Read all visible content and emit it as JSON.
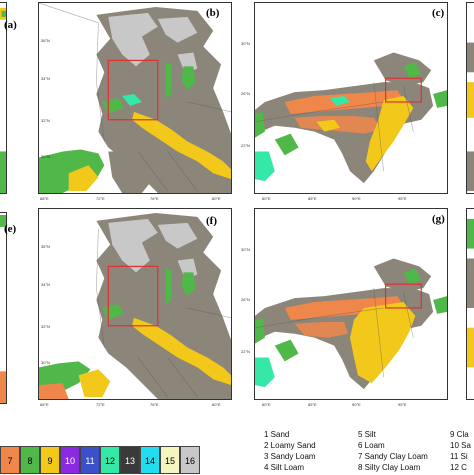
{
  "panels": [
    {
      "id": "a",
      "label": "(a)"
    },
    {
      "id": "b",
      "label": "(b)"
    },
    {
      "id": "c",
      "label": "(c)"
    },
    {
      "id": "e",
      "label": "(e)"
    },
    {
      "id": "f",
      "label": "(f)"
    },
    {
      "id": "g",
      "label": "(g)"
    }
  ],
  "kashmir_axes": {
    "x_ticks": [
      "68°E",
      "72°E",
      "76°E",
      "80°E"
    ],
    "y_ticks": [
      "36°N",
      "34°N",
      "32°N",
      "30°N",
      "28°N"
    ]
  },
  "northeast_axes": {
    "x_ticks": [
      "80°E",
      "85°E",
      "90°E",
      "95°E"
    ],
    "y_ticks": [
      "30°N",
      "26°N",
      "22°N",
      "18°N"
    ]
  },
  "colorbar": [
    {
      "n": "7",
      "color": "#f0874a"
    },
    {
      "n": "8",
      "color": "#4fb848"
    },
    {
      "n": "9",
      "color": "#f2c81a"
    },
    {
      "n": "10",
      "color": "#8a2be2"
    },
    {
      "n": "11",
      "color": "#3b50c9"
    },
    {
      "n": "12",
      "color": "#35e8a8"
    },
    {
      "n": "13",
      "color": "#3a3a3a"
    },
    {
      "n": "14",
      "color": "#22ddee"
    },
    {
      "n": "15",
      "color": "#f5f5bf"
    },
    {
      "n": "16",
      "color": "#c8c8c8"
    }
  ],
  "legend_items": [
    {
      "text": "1 Sand"
    },
    {
      "text": "2 Loamy Sand"
    },
    {
      "text": "3 Sandy Loam"
    },
    {
      "text": "4 Silt Loam"
    },
    {
      "text": "5 Silt"
    },
    {
      "text": "6 Loam"
    },
    {
      "text": "7 Sandy Clay Loam"
    },
    {
      "text": "8 Silty Clay Loam"
    },
    {
      "text": "9 Cla"
    },
    {
      "text": "10 Sa"
    },
    {
      "text": "11 Si"
    },
    {
      "text": "12 C"
    }
  ],
  "colors": {
    "grey_soil": "#8c8579",
    "light_grey": "#c8c8c8",
    "sand_orange": "#f0874a",
    "yellow": "#f2c81a",
    "green": "#4fb848",
    "box": "#e03030"
  }
}
